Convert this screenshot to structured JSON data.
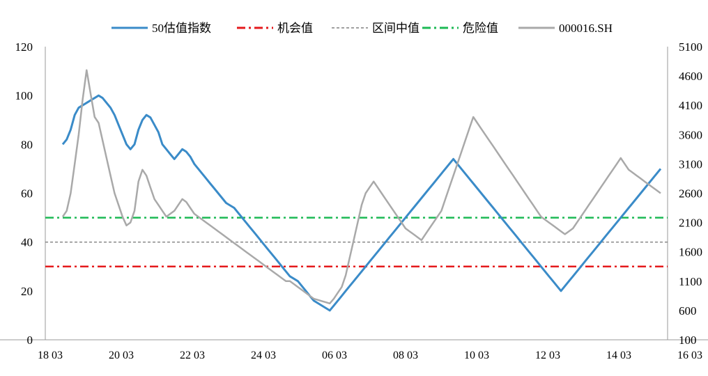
{
  "chart_data": {
    "type": "line",
    "title": "",
    "xlabel": "",
    "ylabel": "",
    "legend_position": "top",
    "legend": [
      {
        "name": "50估值指数",
        "color": "#3A8BC8",
        "style": "solid"
      },
      {
        "name": "机会值",
        "color": "#E41A1C",
        "style": "dash-dot"
      },
      {
        "name": "区间中值",
        "color": "#808080",
        "style": "dashed"
      },
      {
        "name": "危险值",
        "color": "#1DB954",
        "style": "dash-dot"
      },
      {
        "name": "000016.SH",
        "color": "#A9A9A9",
        "style": "solid"
      }
    ],
    "x_tick_labels": [
      "18 03",
      "20 03",
      "22 03",
      "24 03",
      "06 03",
      "08 03",
      "10 03",
      "12 03",
      "14 03",
      "16 03"
    ],
    "y_left": {
      "range": [
        0,
        120
      ],
      "ticks": [
        "120",
        "100",
        "80",
        "60",
        "40",
        "20",
        "0"
      ]
    },
    "y_right": {
      "range": [
        100,
        5100
      ],
      "ticks": [
        "5100",
        "4600",
        "4100",
        "3600",
        "3100",
        "2600",
        "2100",
        "1600",
        "1100",
        "600",
        "100"
      ]
    },
    "reference_lines": {
      "opportunity": 30,
      "midline": 40,
      "danger": 50
    },
    "series": [
      {
        "name": "50估值指数",
        "axis": "left",
        "values": [
          80,
          82,
          86,
          92,
          95,
          96,
          97,
          98,
          99,
          100,
          99,
          97,
          95,
          92,
          88,
          84,
          80,
          78,
          80,
          86,
          90,
          92,
          91,
          88,
          85,
          80,
          78,
          76,
          74,
          76,
          78,
          77,
          75,
          72,
          70,
          68,
          66,
          64,
          62,
          60,
          58,
          56,
          55,
          54,
          52,
          50,
          48,
          46,
          44,
          42,
          40,
          38,
          36,
          34,
          32,
          30,
          28,
          26,
          25,
          24,
          22,
          20,
          18,
          16,
          15,
          14,
          13,
          12,
          14,
          16,
          18,
          20,
          22,
          24,
          26,
          28,
          30,
          32,
          34,
          36,
          38,
          40,
          42,
          44,
          46,
          48,
          50,
          52,
          54,
          56,
          58,
          60,
          62,
          64,
          66,
          68,
          70,
          72,
          74,
          72,
          70,
          68,
          66,
          64,
          62,
          60,
          58,
          56,
          54,
          52,
          50,
          48,
          46,
          44,
          42,
          40,
          38,
          36,
          34,
          32,
          30,
          28,
          26,
          24,
          22,
          20,
          22,
          24,
          26,
          28,
          30,
          32,
          34,
          36,
          38,
          40,
          42,
          44,
          46,
          48,
          50,
          52,
          54,
          56,
          58,
          60,
          62,
          64,
          66,
          68,
          70
        ]
      },
      {
        "name": "000016.SH",
        "axis": "right",
        "values": [
          2200,
          2300,
          2600,
          3100,
          3600,
          4200,
          4700,
          4300,
          3900,
          3800,
          3500,
          3200,
          2900,
          2600,
          2400,
          2200,
          2050,
          2100,
          2300,
          2800,
          3000,
          2900,
          2700,
          2500,
          2400,
          2300,
          2200,
          2250,
          2300,
          2400,
          2500,
          2450,
          2350,
          2250,
          2200,
          2150,
          2100,
          2050,
          2000,
          1950,
          1900,
          1850,
          1800,
          1750,
          1700,
          1650,
          1600,
          1550,
          1500,
          1450,
          1400,
          1350,
          1300,
          1250,
          1200,
          1150,
          1100,
          1100,
          1050,
          1000,
          950,
          900,
          850,
          800,
          780,
          760,
          740,
          720,
          800,
          900,
          1000,
          1200,
          1500,
          1800,
          2100,
          2400,
          2600,
          2700,
          2800,
          2700,
          2600,
          2500,
          2400,
          2300,
          2200,
          2100,
          2000,
          1950,
          1900,
          1850,
          1800,
          1900,
          2000,
          2100,
          2200,
          2300,
          2500,
          2700,
          2900,
          3100,
          3300,
          3500,
          3700,
          3900,
          3800,
          3700,
          3600,
          3500,
          3400,
          3300,
          3200,
          3100,
          3000,
          2900,
          2800,
          2700,
          2600,
          2500,
          2400,
          2300,
          2200,
          2150,
          2100,
          2050,
          2000,
          1950,
          1900,
          1950,
          2000,
          2100,
          2200,
          2300,
          2400,
          2500,
          2600,
          2700,
          2800,
          2900,
          3000,
          3100,
          3200,
          3100,
          3000,
          2950,
          2900,
          2850,
          2800,
          2750,
          2700,
          2650,
          2600
        ]
      }
    ]
  }
}
